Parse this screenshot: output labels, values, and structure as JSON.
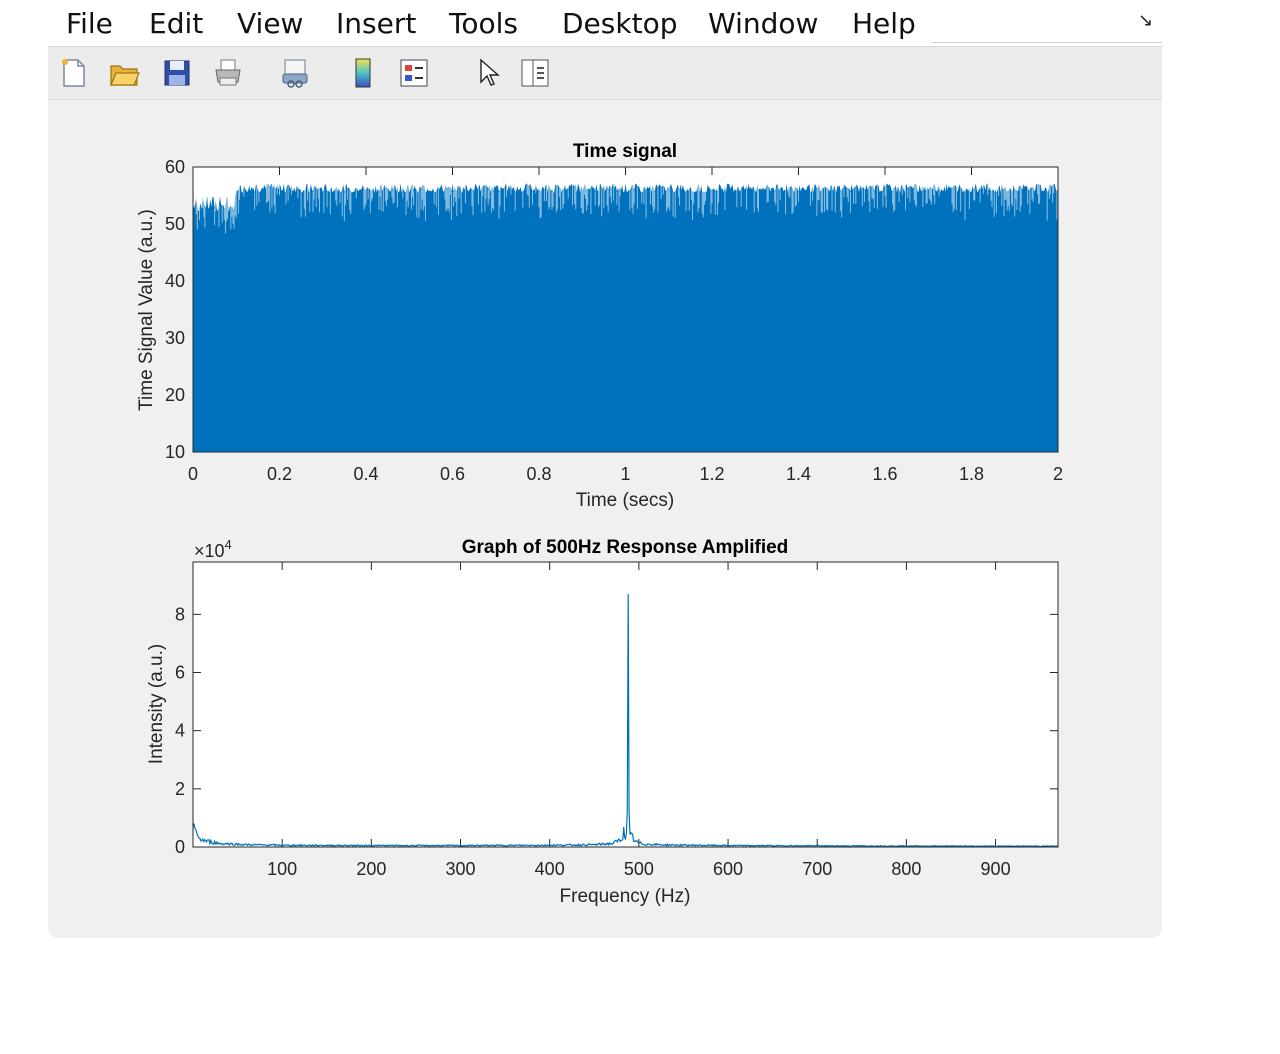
{
  "menu": {
    "items": [
      "File",
      "Edit",
      "View",
      "Insert",
      "Tools",
      "Desktop",
      "Window",
      "Help"
    ],
    "dock_icon": "undock-arrow-icon"
  },
  "toolbar": {
    "buttons": [
      "new-figure-icon",
      "open-file-icon",
      "save-icon",
      "print-icon",
      "link-plot-icon",
      "insert-colorbar-icon",
      "insert-legend-icon",
      "edit-plot-cursor-icon",
      "property-inspector-icon"
    ]
  },
  "colors": {
    "plot_blue": "#0072bd",
    "panel_bg": "#f0f0f0"
  },
  "chart_data": [
    {
      "type": "area",
      "title": "Time signal",
      "xlabel": "Time (secs)",
      "ylabel": "Time Signal Value (a.u.)",
      "xlim": [
        0,
        2
      ],
      "ylim": [
        10,
        60
      ],
      "xticks": [
        "0",
        "0.2",
        "0.4",
        "0.6",
        "0.8",
        "1",
        "1.2",
        "1.4",
        "1.6",
        "1.8",
        "2"
      ],
      "yticks": [
        "10",
        "20",
        "30",
        "40",
        "50",
        "60"
      ],
      "series": [
        {
          "x": [
            0,
            0.1,
            0.1,
            2
          ],
          "upper": [
            54,
            54,
            57,
            57
          ],
          "lower": 10,
          "note": "dense oscillation filling area"
        }
      ]
    },
    {
      "type": "line",
      "title": "Graph of 500Hz Response Amplified",
      "xlabel": "Frequency (Hz)",
      "ylabel": "Intensity (a.u.)",
      "exponent_label": "×10",
      "exponent_power": "4",
      "xlim": [
        0,
        970
      ],
      "ylim": [
        0,
        98000
      ],
      "xticks": [
        "100",
        "200",
        "300",
        "400",
        "500",
        "600",
        "700",
        "800",
        "900"
      ],
      "yticks": [
        "0",
        "2",
        "4",
        "6",
        "8"
      ],
      "series": [
        {
          "x": [
            0,
            5,
            15,
            30,
            60,
            100,
            200,
            300,
            400,
            450,
            470,
            480,
            486,
            488,
            490,
            492,
            496,
            505,
            530,
            600,
            700,
            800,
            900,
            970
          ],
          "y": [
            10000,
            3000,
            2000,
            1200,
            800,
            600,
            500,
            500,
            600,
            800,
            1200,
            2500,
            8000,
            87000,
            8000,
            3500,
            1800,
            1000,
            700,
            500,
            400,
            350,
            300,
            300
          ]
        }
      ]
    }
  ]
}
